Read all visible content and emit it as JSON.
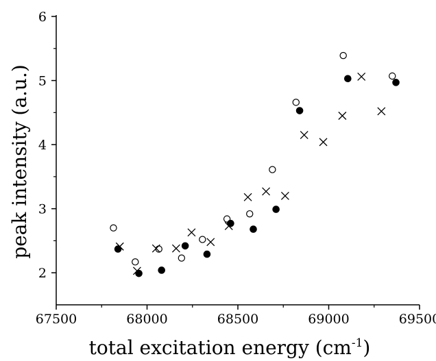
{
  "chart_data": {
    "type": "scatter",
    "title": "",
    "xlabel": "total excitation energy (cm",
    "xlabel_superscript": "-1",
    "xlabel_suffix": ")",
    "ylabel": "peak intensity (a.u.)",
    "xlim": [
      67500,
      69500
    ],
    "ylim": [
      1.5,
      6
    ],
    "xticks": [
      "67500",
      "68000",
      "68500",
      "69000",
      "69500"
    ],
    "yticks": [
      "2",
      "3",
      "4",
      "5",
      "6"
    ],
    "grid": false,
    "legend": "none",
    "series": [
      {
        "marker": "open-circle",
        "color": "#000000",
        "points": [
          [
            67815,
            2.7
          ],
          [
            67935,
            2.17
          ],
          [
            68065,
            2.37
          ],
          [
            68190,
            2.23
          ],
          [
            68305,
            2.52
          ],
          [
            68440,
            2.84
          ],
          [
            68565,
            2.92
          ],
          [
            68690,
            3.61
          ],
          [
            68820,
            4.66
          ],
          [
            69080,
            5.39
          ],
          [
            69350,
            5.07
          ]
        ]
      },
      {
        "marker": "filled-circle",
        "color": "#000000",
        "points": [
          [
            67840,
            2.37
          ],
          [
            67955,
            1.99
          ],
          [
            68080,
            2.04
          ],
          [
            68210,
            2.42
          ],
          [
            68330,
            2.29
          ],
          [
            68460,
            2.77
          ],
          [
            68585,
            2.68
          ],
          [
            68710,
            2.99
          ],
          [
            68840,
            4.53
          ],
          [
            69105,
            5.03
          ],
          [
            69370,
            4.97
          ]
        ]
      },
      {
        "marker": "cross",
        "color": "#000000",
        "points": [
          [
            67850,
            2.41
          ],
          [
            67945,
            2.03
          ],
          [
            68050,
            2.38
          ],
          [
            68160,
            2.38
          ],
          [
            68245,
            2.63
          ],
          [
            68350,
            2.48
          ],
          [
            68450,
            2.73
          ],
          [
            68555,
            3.18
          ],
          [
            68655,
            3.27
          ],
          [
            68760,
            3.2
          ],
          [
            68865,
            4.15
          ],
          [
            68970,
            4.04
          ],
          [
            69075,
            4.45
          ],
          [
            69180,
            5.06
          ],
          [
            69290,
            4.52
          ]
        ]
      }
    ]
  }
}
